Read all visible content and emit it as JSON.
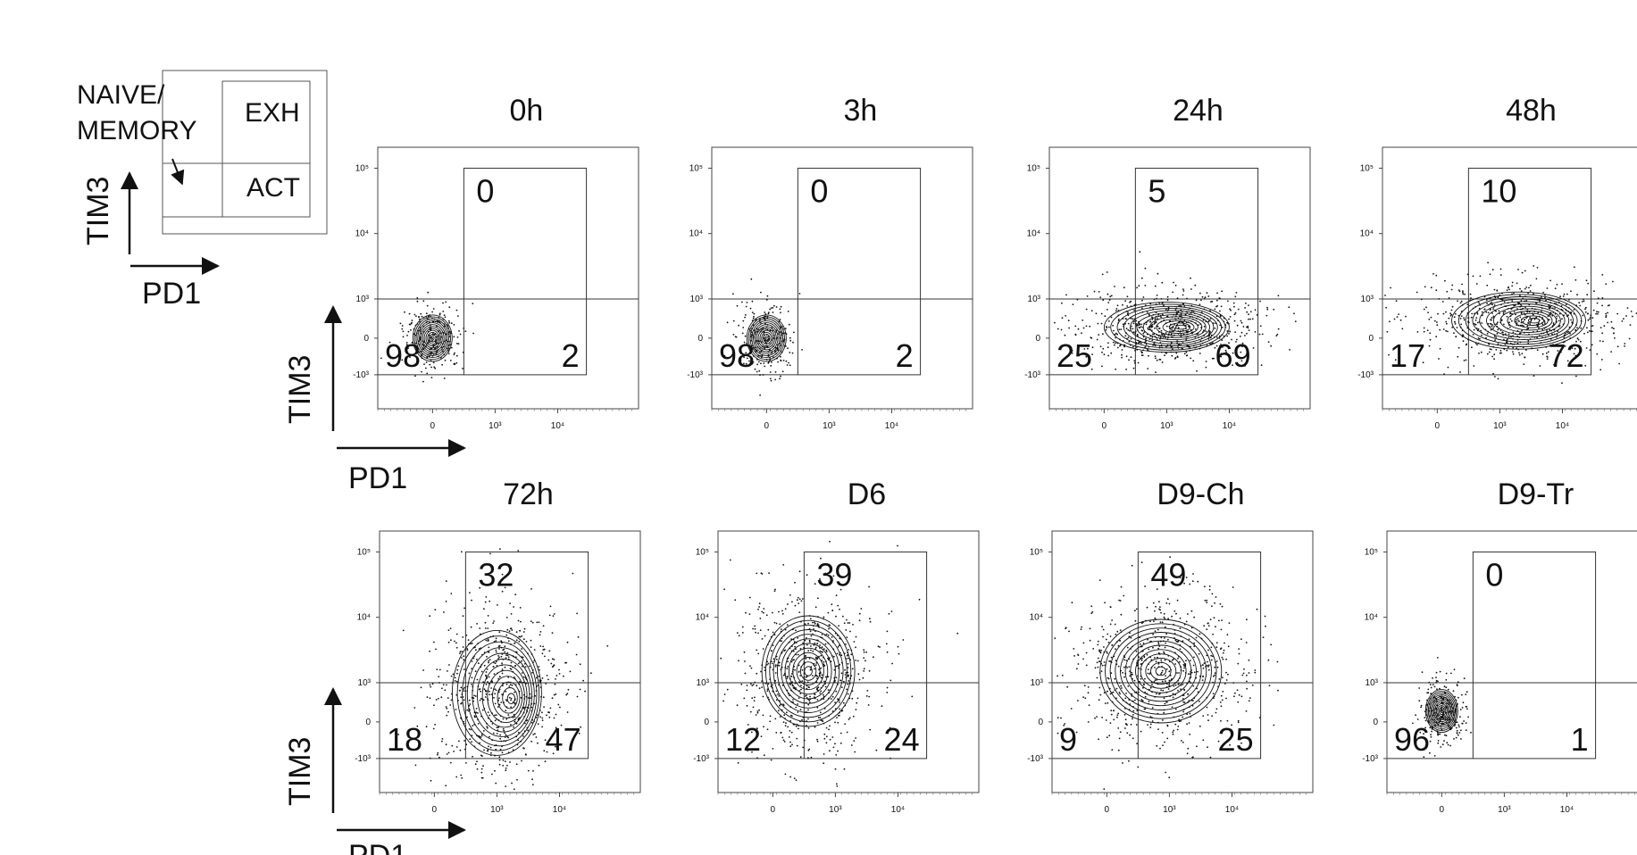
{
  "legend": {
    "naive_memory_line1": "NAIVE/",
    "naive_memory_line2": "MEMORY",
    "exh": "EXH",
    "act": "ACT",
    "y_axis": "TIM3",
    "x_axis": "PD1"
  },
  "axis_labels": {
    "y": "TIM3",
    "x": "PD1"
  },
  "chart_data": [
    {
      "type": "contour",
      "title": "0h",
      "quadrants": {
        "upper_right": "0",
        "lower_left": "98",
        "lower_right": "2"
      },
      "x_ticks": [
        "0",
        "10³",
        "10⁴"
      ],
      "y_ticks": [
        "10⁵",
        "10⁴",
        "10³",
        "0",
        "-10³"
      ],
      "population_center": {
        "pd1": 0,
        "tim3": 0
      }
    },
    {
      "type": "contour",
      "title": "3h",
      "quadrants": {
        "upper_right": "0",
        "lower_left": "98",
        "lower_right": "2"
      },
      "x_ticks": [
        "0",
        "10³",
        "10⁴"
      ],
      "y_ticks": [
        "10⁵",
        "10⁴",
        "10³",
        "0",
        "-10³"
      ],
      "population_center": {
        "pd1": 0,
        "tim3": 0
      }
    },
    {
      "type": "contour",
      "title": "24h",
      "quadrants": {
        "upper_right": "5",
        "lower_left": "25",
        "lower_right": "69"
      },
      "x_ticks": [
        "0",
        "10³",
        "10⁴"
      ],
      "y_ticks": [
        "10⁵",
        "10⁴",
        "10³",
        "0",
        "-10³"
      ],
      "population_center": {
        "pd1": 1000,
        "tim3": 100
      }
    },
    {
      "type": "contour",
      "title": "48h",
      "quadrants": {
        "upper_right": "10",
        "lower_left": "17",
        "lower_right": "72"
      },
      "x_ticks": [
        "0",
        "10³",
        "10⁴"
      ],
      "y_ticks": [
        "10⁵",
        "10⁴",
        "10³",
        "0",
        "-10³"
      ],
      "population_center": {
        "pd1": 2000,
        "tim3": 200
      }
    },
    {
      "type": "contour",
      "title": "72h",
      "quadrants": {
        "upper_right": "32",
        "lower_left": "18",
        "lower_right": "47"
      },
      "x_ticks": [
        "0",
        "10³",
        "10⁴"
      ],
      "y_ticks": [
        "10⁵",
        "10⁴",
        "10³",
        "0",
        "-10³"
      ],
      "population_center": {
        "pd1": 1000,
        "tim3": 500
      }
    },
    {
      "type": "contour",
      "title": "D6",
      "quadrants": {
        "upper_right": "39",
        "lower_left": "12",
        "lower_right": "24"
      },
      "x_ticks": [
        "0",
        "10³",
        "10⁴"
      ],
      "y_ticks": [
        "10⁵",
        "10⁴",
        "10³",
        "0",
        "-10³"
      ],
      "population_center": {
        "pd1": 300,
        "tim3": 1500
      }
    },
    {
      "type": "contour",
      "title": "D9-Ch",
      "quadrants": {
        "upper_right": "49",
        "lower_left": "9",
        "lower_right": "25"
      },
      "x_ticks": [
        "0",
        "10³",
        "10⁴"
      ],
      "y_ticks": [
        "10⁵",
        "10⁴",
        "10³",
        "0",
        "-10³"
      ],
      "population_center": {
        "pd1": 700,
        "tim3": 1500
      }
    },
    {
      "type": "contour",
      "title": "D9-Tr",
      "quadrants": {
        "upper_right": "0",
        "lower_left": "96",
        "lower_right": "1"
      },
      "x_ticks": [
        "0",
        "10³",
        "10⁴"
      ],
      "y_ticks": [
        "10⁵",
        "10⁴",
        "10³",
        "0",
        "-10³"
      ],
      "population_center": {
        "pd1": 0,
        "tim3": 100
      }
    }
  ]
}
